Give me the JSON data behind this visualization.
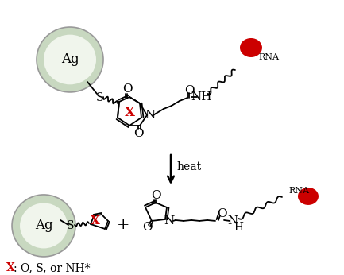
{
  "bg_color": "#ffffff",
  "fig_width": 4.33,
  "fig_height": 3.46,
  "dpi": 100,
  "ag_label": "Ag",
  "s_label": "S",
  "x_label": "X",
  "rna_label": "RNA",
  "heat_label": "heat",
  "o_label": "O",
  "n_label": "N",
  "nh_label": "NH",
  "h_label": "H",
  "plus_label": "+",
  "x_footnote_x": "X",
  "x_footnote_rest": ": O, S, or NH*",
  "red_dot_color": "#cc0000",
  "ag_fill": "#f0f5ec",
  "ag_ring": "#b8ccb0",
  "ag_outer": "#c8d8c0",
  "arrow_color": "#000000",
  "x_color": "#cc0000",
  "text_color": "#000000",
  "line_color": "#000000"
}
